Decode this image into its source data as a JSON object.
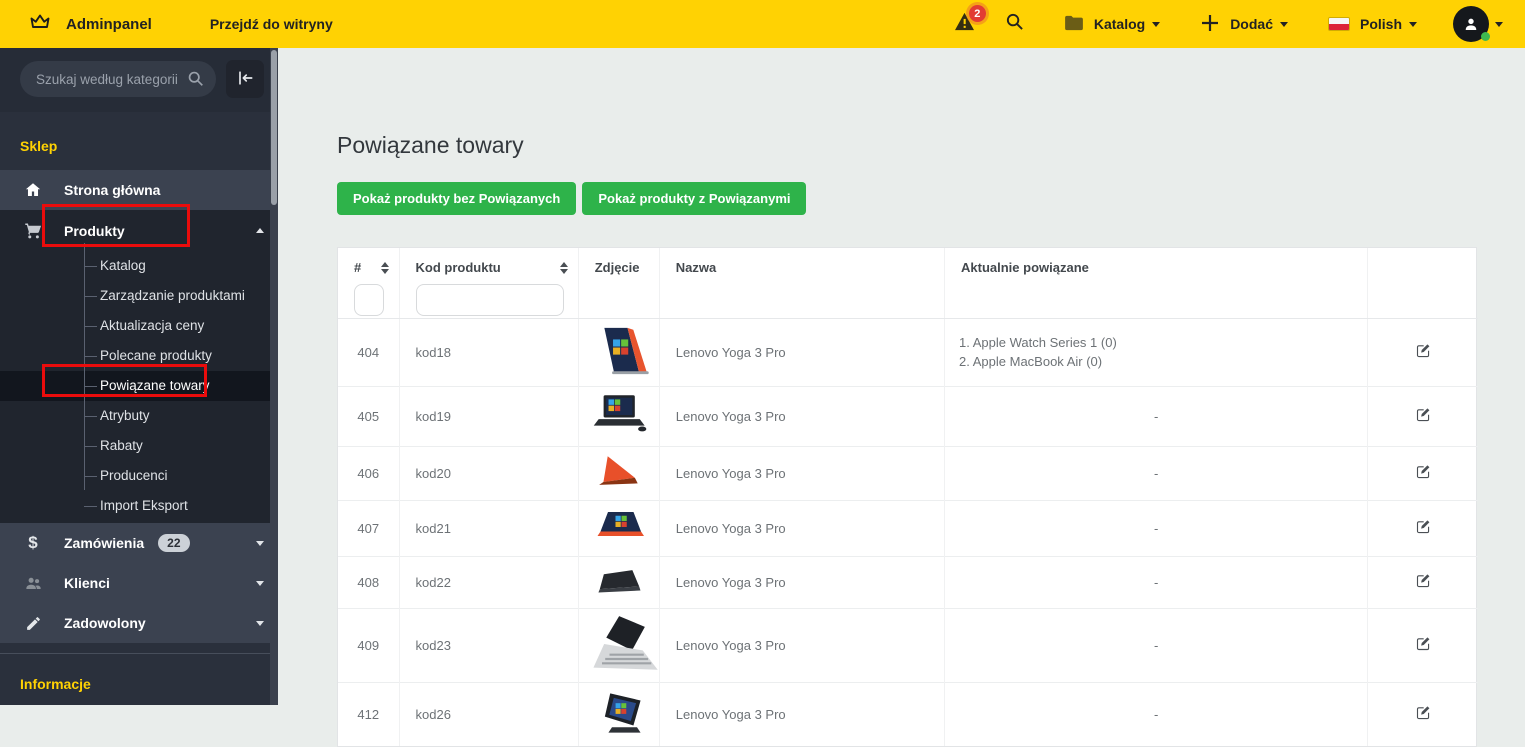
{
  "topbar": {
    "brand": "Adminpanel",
    "site_link": "Przejdź do witryny",
    "alerts_count": "2",
    "catalog_label": "Katalog",
    "add_label": "Dodać",
    "language_label": "Polish"
  },
  "sidebar": {
    "search_placeholder": "Szukaj według kategorii",
    "section_label": "Sklep",
    "nav": [
      {
        "label": "Strona główna"
      },
      {
        "label": "Produkty",
        "children": [
          "Katalog",
          "Zarządzanie produktami",
          "Aktualizacja ceny",
          "Polecane produkty",
          "Powiązane towary",
          "Atrybuty",
          "Rabaty",
          "Producenci",
          "Import Eksport"
        ],
        "active_child": "Powiązane towary"
      },
      {
        "label": "Zamówienia",
        "badge": "22"
      },
      {
        "label": "Klienci"
      },
      {
        "label": "Zadowolony"
      }
    ],
    "footer_label": "Informacje"
  },
  "main": {
    "title": "Powiązane towary",
    "buttons": [
      "Pokaż produkty bez Powiązanych",
      "Pokaż produkty z Powiązanymi"
    ],
    "table": {
      "columns": [
        "#",
        "Kod produktu",
        "Zdjęcie",
        "Nazwa",
        "Aktualnie powiązane",
        ""
      ],
      "empty_value": "-",
      "rows": [
        {
          "id": "404",
          "code": "kod18",
          "name": "Lenovo Yoga 3 Pro",
          "linked": [
            "1. Apple Watch Series 1 (0)",
            "2. Apple MacBook Air (0)"
          ],
          "img": {
            "type": "tent",
            "primary": "#e8542e",
            "secondary": "#1b2b4d"
          }
        },
        {
          "id": "405",
          "code": "kod19",
          "name": "Lenovo Yoga 3 Pro",
          "linked": null,
          "img": {
            "type": "front",
            "primary": "#2a2e33",
            "secondary": "#1b2b4d"
          }
        },
        {
          "id": "406",
          "code": "kod20",
          "name": "Lenovo Yoga 3 Pro",
          "linked": null,
          "img": {
            "type": "wedge",
            "primary": "#e8502a",
            "secondary": "#8a3413"
          }
        },
        {
          "id": "407",
          "code": "kod21",
          "name": "Lenovo Yoga 3 Pro",
          "linked": null,
          "img": {
            "type": "flat",
            "primary": "#e8502a",
            "secondary": "#1b2b4d"
          }
        },
        {
          "id": "408",
          "code": "kod22",
          "name": "Lenovo Yoga 3 Pro",
          "linked": null,
          "img": {
            "type": "closed",
            "primary": "#26292e",
            "secondary": "#3a3e44"
          }
        },
        {
          "id": "409",
          "code": "kod23",
          "name": "Lenovo Yoga 3 Pro",
          "linked": null,
          "img": {
            "type": "silver",
            "primary": "#d6d8da",
            "secondary": "#1e2126"
          }
        },
        {
          "id": "412",
          "code": "kod26",
          "name": "Lenovo Yoga 3 Pro",
          "linked": null,
          "img": {
            "type": "stand",
            "primary": "#1d2127",
            "secondary": "#2a4a8a"
          }
        }
      ]
    }
  },
  "colors": {
    "topbar_yellow": "#ffd203",
    "button_green": "#2eb34a",
    "annotation_red": "#ea0c0c",
    "sidebar_accent_yellow": "#ffd203",
    "alert_badge_red": "#e23c33",
    "active_item_bg": "#12161e"
  }
}
